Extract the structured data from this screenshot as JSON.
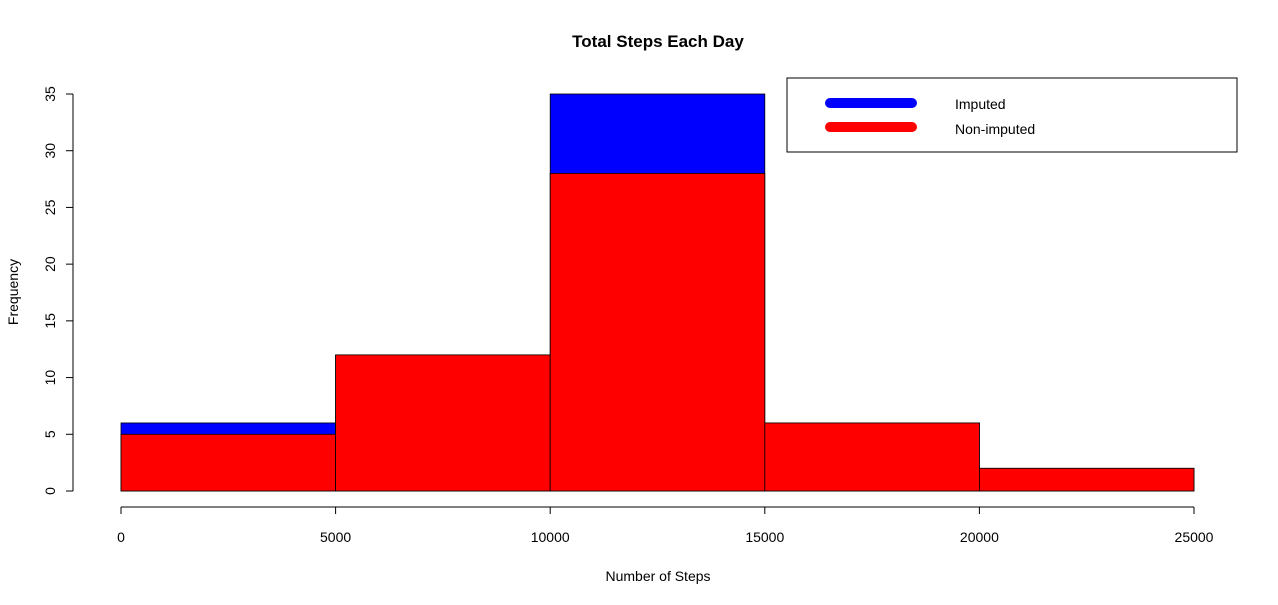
{
  "chart_data": {
    "type": "bar",
    "title": "Total Steps Each Day",
    "xlabel": "Number of Steps",
    "ylabel": "Frequency",
    "bins": [
      [
        0,
        5000
      ],
      [
        5000,
        10000
      ],
      [
        10000,
        15000
      ],
      [
        15000,
        20000
      ],
      [
        20000,
        25000
      ]
    ],
    "xlim": [
      0,
      25000
    ],
    "ylim": [
      0,
      35
    ],
    "x_ticks": [
      0,
      5000,
      10000,
      15000,
      20000,
      25000
    ],
    "y_ticks": [
      0,
      5,
      10,
      15,
      20,
      25,
      30,
      35
    ],
    "series": [
      {
        "name": "Imputed",
        "color": "#0000ff",
        "values": [
          6,
          12,
          35,
          6,
          2
        ]
      },
      {
        "name": "Non-imputed",
        "color": "#ff0000",
        "values": [
          5,
          12,
          28,
          6,
          2
        ]
      }
    ],
    "legend_position": "top-right",
    "grid": false
  }
}
